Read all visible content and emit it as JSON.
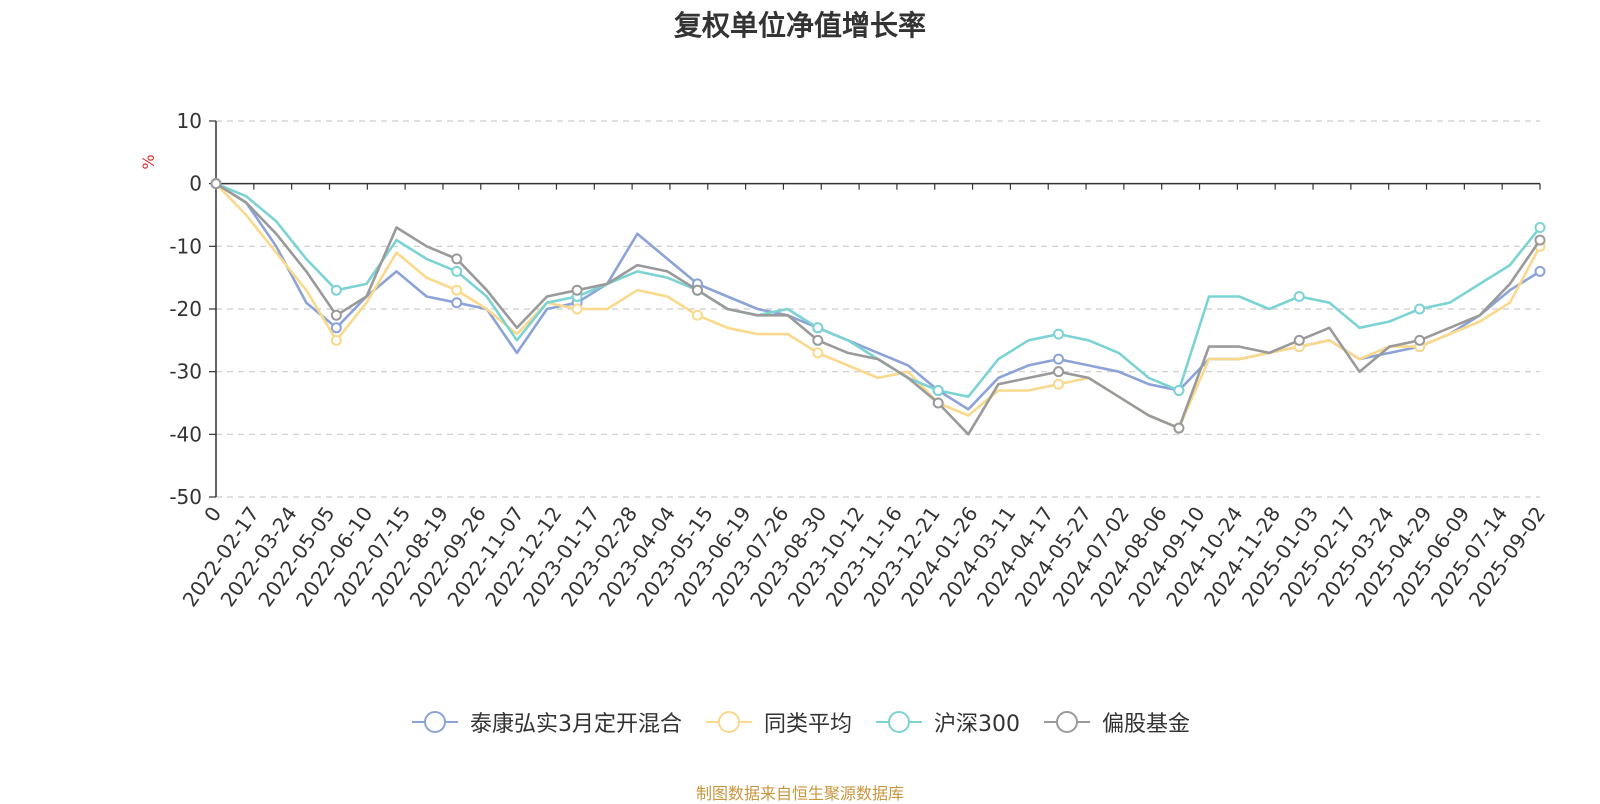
{
  "chart_data": {
    "type": "line",
    "title": "复权单位净值增长率",
    "ylabel": "%",
    "ylim": [
      -50,
      10
    ],
    "yticks": [
      10,
      0,
      -10,
      -20,
      -30,
      -40,
      -50
    ],
    "grid": true,
    "legend_position": "bottom",
    "x_tick_labels": [
      "0",
      "2022-02-17",
      "2022-03-24",
      "2022-05-05",
      "2022-06-10",
      "2022-07-15",
      "2022-08-19",
      "2022-09-26",
      "2022-11-07",
      "2022-12-12",
      "2023-01-17",
      "2023-02-28",
      "2023-04-04",
      "2023-05-15",
      "2023-06-19",
      "2023-07-26",
      "2023-08-30",
      "2023-10-12",
      "2023-11-16",
      "2023-12-21",
      "2024-01-26",
      "2024-03-11",
      "2024-04-17",
      "2024-05-27",
      "2024-07-02",
      "2024-08-06",
      "2024-09-10",
      "2024-10-24",
      "2024-11-28",
      "2025-01-03",
      "2025-02-17",
      "2025-03-24",
      "2025-04-29",
      "2025-06-09",
      "2025-07-14",
      "2025-09-02"
    ],
    "series": [
      {
        "name": "泰康弘实3月定开混合",
        "color": "#8ba3d8",
        "values": [
          0,
          -3,
          -10,
          -19,
          -23,
          -18,
          -14,
          -18,
          -19,
          -20,
          -27,
          -20,
          -19,
          -16,
          -8,
          -12,
          -16,
          -18,
          -20,
          -21,
          -23,
          -25,
          -27,
          -29,
          -33,
          -36,
          -31,
          -29,
          -28,
          -29,
          -30,
          -32,
          -33,
          -28,
          -28,
          -27,
          -26,
          -25,
          -28,
          -27,
          -26,
          -24,
          -21,
          -17,
          -14
        ]
      },
      {
        "name": "同类平均",
        "color": "#fad98c",
        "values": [
          0,
          -5,
          -11,
          -17,
          -25,
          -19,
          -11,
          -15,
          -17,
          -20,
          -24,
          -19,
          -20,
          -20,
          -17,
          -18,
          -21,
          -23,
          -24,
          -24,
          -27,
          -29,
          -31,
          -30,
          -35,
          -37,
          -33,
          -33,
          -32,
          -31,
          -34,
          -37,
          -39,
          -28,
          -28,
          -27,
          -26,
          -25,
          -28,
          -26,
          -26,
          -24,
          -22,
          -19,
          -10
        ]
      },
      {
        "name": "沪深300",
        "color": "#7dd3d4",
        "values": [
          0,
          -2,
          -6,
          -12,
          -17,
          -16,
          -9,
          -12,
          -14,
          -18,
          -25,
          -19,
          -18,
          -16,
          -14,
          -15,
          -17,
          -20,
          -21,
          -20,
          -23,
          -25,
          -28,
          -31,
          -33,
          -34,
          -28,
          -25,
          -24,
          -25,
          -27,
          -31,
          -33,
          -18,
          -18,
          -20,
          -18,
          -19,
          -23,
          -22,
          -20,
          -19,
          -16,
          -13,
          -7
        ]
      },
      {
        "name": "偏股基金",
        "color": "#9a9a9a",
        "values": [
          0,
          -3,
          -8,
          -14,
          -21,
          -18,
          -7,
          -10,
          -12,
          -17,
          -23,
          -18,
          -17,
          -16,
          -13,
          -14,
          -17,
          -20,
          -21,
          -21,
          -25,
          -27,
          -28,
          -31,
          -35,
          -40,
          -32,
          -31,
          -30,
          -31,
          -34,
          -37,
          -39,
          -26,
          -26,
          -27,
          -25,
          -23,
          -30,
          -26,
          -25,
          -23,
          -21,
          -16,
          -9
        ]
      }
    ]
  },
  "source_note": "制图数据来自恒生聚源数据库"
}
